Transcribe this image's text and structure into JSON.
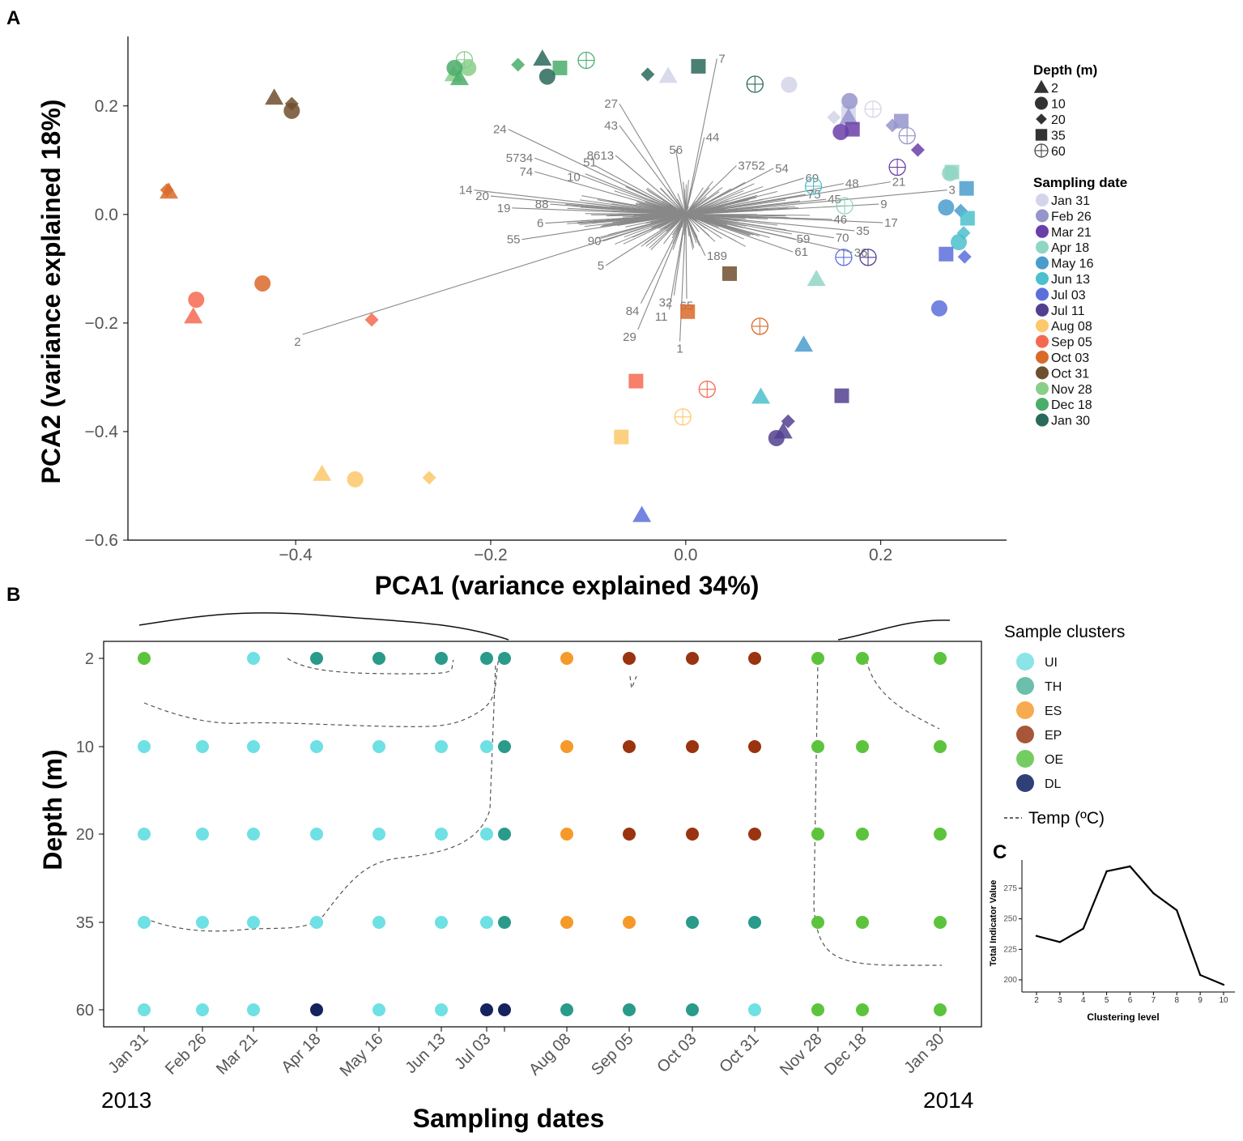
{
  "panels": {
    "a": "A",
    "b": "B",
    "c": "C"
  },
  "chart_data": [
    {
      "type": "scatter",
      "panel": "A",
      "xlabel": "PCA1 (variance explained 34%)",
      "ylabel": "PCA2 (variance explained 18%)",
      "xlim": [
        -0.572,
        0.329
      ],
      "ylim": [
        -0.6,
        0.328
      ],
      "xticks": [
        -0.4,
        -0.2,
        0.0,
        0.2
      ],
      "xtick_labels": [
        "−0.4",
        "−0.2",
        "0.0",
        "0.2"
      ],
      "yticks": [
        0.2,
        0.0,
        -0.2,
        -0.4,
        -0.6
      ],
      "ytick_labels": [
        "0.2",
        "0.0",
        "−0.2",
        "−0.4",
        "−0.6"
      ],
      "legend_depth_title": "Depth (m)",
      "depths": [
        {
          "label": "2",
          "shape": "triangle"
        },
        {
          "label": "10",
          "shape": "circle"
        },
        {
          "label": "20",
          "shape": "diamond"
        },
        {
          "label": "35",
          "shape": "square"
        },
        {
          "label": "60",
          "shape": "crossed-circle"
        }
      ],
      "legend_date_title": "Sampling date",
      "dates": [
        {
          "label": "Jan 31",
          "color": "#d4d4ea"
        },
        {
          "label": "Feb 26",
          "color": "#9595cc"
        },
        {
          "label": "Mar 21",
          "color": "#6a3fa8"
        },
        {
          "label": "Apr 18",
          "color": "#8fd6c4"
        },
        {
          "label": "May 16",
          "color": "#4a9ccc"
        },
        {
          "label": "Jun 13",
          "color": "#4cc0cc"
        },
        {
          "label": "Jul 03",
          "color": "#5b6fdc"
        },
        {
          "label": "Jul 11",
          "color": "#523f8f"
        },
        {
          "label": "Aug 08",
          "color": "#fcc86a"
        },
        {
          "label": "Sep 05",
          "color": "#f46a50"
        },
        {
          "label": "Oct 03",
          "color": "#d96a2a"
        },
        {
          "label": "Oct 31",
          "color": "#6e4f2e"
        },
        {
          "label": "Nov 28",
          "color": "#88cf8a"
        },
        {
          "label": "Dec 18",
          "color": "#4aad6a"
        },
        {
          "label": "Jan 30",
          "color": "#2a6a5a"
        }
      ],
      "points": [
        {
          "date": "Oct 03",
          "depth": "2",
          "x": -0.53,
          "y": 0.042
        },
        {
          "date": "Oct 03",
          "depth": "20",
          "x": -0.532,
          "y": 0.045
        },
        {
          "date": "Oct 03",
          "depth": "10",
          "x": -0.434,
          "y": -0.127
        },
        {
          "date": "Oct 03",
          "depth": "35",
          "x": 0.002,
          "y": -0.179
        },
        {
          "date": "Oct 03",
          "depth": "60",
          "x": 0.076,
          "y": -0.206
        },
        {
          "date": "Sep 05",
          "depth": "10",
          "x": -0.502,
          "y": -0.157
        },
        {
          "date": "Sep 05",
          "depth": "2",
          "x": -0.505,
          "y": -0.188
        },
        {
          "date": "Sep 05",
          "depth": "20",
          "x": -0.322,
          "y": -0.194
        },
        {
          "date": "Sep 05",
          "depth": "35",
          "x": -0.051,
          "y": -0.307
        },
        {
          "date": "Sep 05",
          "depth": "60",
          "x": 0.022,
          "y": -0.322
        },
        {
          "date": "Oct 31",
          "depth": "2",
          "x": -0.422,
          "y": 0.215
        },
        {
          "date": "Oct 31",
          "depth": "20",
          "x": -0.404,
          "y": 0.204
        },
        {
          "date": "Oct 31",
          "depth": "10",
          "x": -0.404,
          "y": 0.191
        },
        {
          "date": "Oct 31",
          "depth": "35",
          "x": 0.045,
          "y": -0.109
        },
        {
          "date": "Aug 08",
          "depth": "2",
          "x": -0.373,
          "y": -0.478
        },
        {
          "date": "Aug 08",
          "depth": "10",
          "x": -0.339,
          "y": -0.488
        },
        {
          "date": "Aug 08",
          "depth": "20",
          "x": -0.263,
          "y": -0.485
        },
        {
          "date": "Aug 08",
          "depth": "35",
          "x": -0.066,
          "y": -0.41
        },
        {
          "date": "Aug 08",
          "depth": "60",
          "x": -0.003,
          "y": -0.373
        },
        {
          "date": "Nov 28",
          "depth": "10",
          "x": -0.223,
          "y": 0.27
        },
        {
          "date": "Nov 28",
          "depth": "2",
          "x": -0.238,
          "y": 0.258
        },
        {
          "date": "Nov 28",
          "depth": "60",
          "x": -0.227,
          "y": 0.285
        },
        {
          "date": "Dec 18",
          "depth": "10",
          "x": -0.237,
          "y": 0.27
        },
        {
          "date": "Dec 18",
          "depth": "2",
          "x": -0.232,
          "y": 0.251
        },
        {
          "date": "Dec 18",
          "depth": "20",
          "x": -0.172,
          "y": 0.276
        },
        {
          "date": "Dec 18",
          "depth": "35",
          "x": -0.129,
          "y": 0.27
        },
        {
          "date": "Dec 18",
          "depth": "60",
          "x": -0.102,
          "y": 0.284
        },
        {
          "date": "Jan 30",
          "depth": "2",
          "x": -0.147,
          "y": 0.287
        },
        {
          "date": "Jan 30",
          "depth": "10",
          "x": -0.142,
          "y": 0.254
        },
        {
          "date": "Jan 30",
          "depth": "20",
          "x": -0.039,
          "y": 0.258
        },
        {
          "date": "Jan 30",
          "depth": "35",
          "x": 0.013,
          "y": 0.273
        },
        {
          "date": "Jan 30",
          "depth": "60",
          "x": 0.071,
          "y": 0.24
        },
        {
          "date": "Jan 31",
          "depth": "2",
          "x": -0.018,
          "y": 0.255
        },
        {
          "date": "Jan 31",
          "depth": "10",
          "x": 0.106,
          "y": 0.239
        },
        {
          "date": "Jan 31",
          "depth": "20",
          "x": 0.152,
          "y": 0.179
        },
        {
          "date": "Jan 31",
          "depth": "35",
          "x": 0.167,
          "y": 0.187
        },
        {
          "date": "Jan 31",
          "depth": "60",
          "x": 0.192,
          "y": 0.194
        },
        {
          "date": "Feb 26",
          "depth": "10",
          "x": 0.168,
          "y": 0.209
        },
        {
          "date": "Feb 26",
          "depth": "2",
          "x": 0.167,
          "y": 0.179
        },
        {
          "date": "Feb 26",
          "depth": "20",
          "x": 0.212,
          "y": 0.164
        },
        {
          "date": "Feb 26",
          "depth": "35",
          "x": 0.221,
          "y": 0.172
        },
        {
          "date": "Feb 26",
          "depth": "60",
          "x": 0.227,
          "y": 0.145
        },
        {
          "date": "Mar 21",
          "depth": "10",
          "x": 0.159,
          "y": 0.152
        },
        {
          "date": "Mar 21",
          "depth": "35",
          "x": 0.171,
          "y": 0.157
        },
        {
          "date": "Mar 21",
          "depth": "20",
          "x": 0.238,
          "y": 0.119
        },
        {
          "date": "Mar 21",
          "depth": "60",
          "x": 0.217,
          "y": 0.087
        },
        {
          "date": "Apr 18",
          "depth": "2",
          "x": 0.134,
          "y": -0.119
        },
        {
          "date": "Apr 18",
          "depth": "10",
          "x": 0.271,
          "y": 0.076
        },
        {
          "date": "Apr 18",
          "depth": "35",
          "x": 0.273,
          "y": 0.078
        },
        {
          "date": "Apr 18",
          "depth": "60",
          "x": 0.163,
          "y": 0.016
        },
        {
          "date": "May 16",
          "depth": "10",
          "x": 0.267,
          "y": 0.013
        },
        {
          "date": "May 16",
          "depth": "35",
          "x": 0.288,
          "y": 0.048
        },
        {
          "date": "May 16",
          "depth": "20",
          "x": 0.282,
          "y": 0.007
        },
        {
          "date": "May 16",
          "depth": "2",
          "x": 0.121,
          "y": -0.24
        },
        {
          "date": "Jun 13",
          "depth": "35",
          "x": 0.289,
          "y": -0.007
        },
        {
          "date": "Jun 13",
          "depth": "20",
          "x": 0.285,
          "y": -0.034
        },
        {
          "date": "Jun 13",
          "depth": "10",
          "x": 0.28,
          "y": -0.051
        },
        {
          "date": "Jun 13",
          "depth": "2",
          "x": 0.077,
          "y": -0.336
        },
        {
          "date": "Jun 13",
          "depth": "60",
          "x": 0.131,
          "y": 0.052
        },
        {
          "date": "Jul 03",
          "depth": "35",
          "x": 0.267,
          "y": -0.073
        },
        {
          "date": "Jul 03",
          "depth": "20",
          "x": 0.286,
          "y": -0.078
        },
        {
          "date": "Jul 03",
          "depth": "10",
          "x": 0.26,
          "y": -0.173
        },
        {
          "date": "Jul 03",
          "depth": "2",
          "x": -0.045,
          "y": -0.554
        },
        {
          "date": "Jul 03",
          "depth": "60",
          "x": 0.162,
          "y": -0.079
        },
        {
          "date": "Jul 11",
          "depth": "35",
          "x": 0.16,
          "y": -0.334
        },
        {
          "date": "Jul 11",
          "depth": "20",
          "x": 0.105,
          "y": -0.381
        },
        {
          "date": "Jul 11",
          "depth": "2",
          "x": 0.1,
          "y": -0.4
        },
        {
          "date": "Jul 11",
          "depth": "10",
          "x": 0.093,
          "y": -0.412
        },
        {
          "date": "Jul 11",
          "depth": "60",
          "x": 0.187,
          "y": -0.079
        }
      ],
      "loadings": [
        {
          "label": "2",
          "x": -0.393,
          "y": -0.221
        },
        {
          "label": "7",
          "x": 0.032,
          "y": 0.287
        },
        {
          "label": "27",
          "x": -0.068,
          "y": 0.204
        },
        {
          "label": "43",
          "x": -0.068,
          "y": 0.164
        },
        {
          "label": "44",
          "x": 0.019,
          "y": 0.142
        },
        {
          "label": "24",
          "x": -0.182,
          "y": 0.157
        },
        {
          "label": "56",
          "x": -0.01,
          "y": 0.119
        },
        {
          "label": "5734",
          "x": -0.155,
          "y": 0.104
        },
        {
          "label": "74",
          "x": -0.155,
          "y": 0.079
        },
        {
          "label": "10",
          "x": -0.103,
          "y": 0.075
        },
        {
          "label": "51",
          "x": -0.093,
          "y": 0.09
        },
        {
          "label": "8613",
          "x": -0.072,
          "y": 0.109
        },
        {
          "label": "14",
          "x": -0.217,
          "y": 0.045
        },
        {
          "label": "20",
          "x": -0.2,
          "y": 0.034
        },
        {
          "label": "19",
          "x": -0.178,
          "y": 0.012
        },
        {
          "label": "88",
          "x": -0.139,
          "y": 0.019
        },
        {
          "label": "6",
          "x": -0.144,
          "y": -0.016
        },
        {
          "label": "55",
          "x": -0.168,
          "y": -0.046
        },
        {
          "label": "90",
          "x": -0.085,
          "y": -0.049
        },
        {
          "label": "5",
          "x": -0.082,
          "y": -0.094
        },
        {
          "label": "84",
          "x": -0.046,
          "y": -0.164
        },
        {
          "label": "29",
          "x": -0.049,
          "y": -0.212
        },
        {
          "label": "1",
          "x": -0.006,
          "y": -0.234
        },
        {
          "label": "11",
          "x": -0.017,
          "y": -0.175
        },
        {
          "label": "32",
          "x": -0.012,
          "y": -0.149
        },
        {
          "label": "65",
          "x": 0.001,
          "y": -0.155
        },
        {
          "label": "189",
          "x": 0.02,
          "y": -0.076
        },
        {
          "label": "3752",
          "x": 0.052,
          "y": 0.09
        },
        {
          "label": "54",
          "x": 0.09,
          "y": 0.085
        },
        {
          "label": "69",
          "x": 0.121,
          "y": 0.067
        },
        {
          "label": "48",
          "x": 0.162,
          "y": 0.057
        },
        {
          "label": "21",
          "x": 0.21,
          "y": 0.06
        },
        {
          "label": "3",
          "x": 0.268,
          "y": 0.045
        },
        {
          "label": "9",
          "x": 0.198,
          "y": 0.019
        },
        {
          "label": "17",
          "x": 0.202,
          "y": -0.015
        },
        {
          "label": "35",
          "x": 0.173,
          "y": -0.03
        },
        {
          "label": "46",
          "x": 0.15,
          "y": -0.009
        },
        {
          "label": "70",
          "x": 0.152,
          "y": -0.043
        },
        {
          "label": "36",
          "x": 0.171,
          "y": -0.07
        },
        {
          "label": "59",
          "x": 0.112,
          "y": -0.045
        },
        {
          "label": "61",
          "x": 0.11,
          "y": -0.069
        },
        {
          "label": "45",
          "x": 0.144,
          "y": 0.028
        },
        {
          "label": "75",
          "x": 0.123,
          "y": 0.037
        }
      ]
    },
    {
      "type": "heatmap",
      "panel": "B",
      "xlabel": "Sampling dates",
      "ylabel": "Depth (m)",
      "year_start": "2013",
      "year_end": "2014",
      "depths": [
        "2",
        "10",
        "20",
        "35",
        "60"
      ],
      "columns": [
        "Jan 31",
        "Feb 26",
        "Mar 21",
        "Apr 18",
        "May 16",
        "Jun 13",
        "Jul 03",
        "Jul 11",
        "Aug 08",
        "Sep 05",
        "Oct 03",
        "Oct 31",
        "Nov 28",
        "Dec 18",
        "Jan 30"
      ],
      "column_labels": [
        "Jan 31",
        "Feb 26",
        "Mar 21",
        "Apr 18",
        "May 16",
        "Jun 13",
        "Jul 03",
        "",
        "Aug 08",
        "Sep 05",
        "Oct 03",
        "Oct 31",
        "Nov 28",
        "Dec 18",
        "Jan 30"
      ],
      "legend_title": "Sample clusters",
      "clusters": [
        {
          "label": "UI",
          "color": "#6fe0e4",
          "legend_color": "#8ae4e8"
        },
        {
          "label": "TH",
          "color": "#2a9a8a",
          "legend_color": "#6bbfab"
        },
        {
          "label": "ES",
          "color": "#f59a2a",
          "legend_color": "#f7aa50"
        },
        {
          "label": "EP",
          "color": "#9a3410",
          "legend_color": "#a85638"
        },
        {
          "label": "OE",
          "color": "#5cc43c",
          "legend_color": "#74cd60"
        },
        {
          "label": "DL",
          "color": "#14235e",
          "legend_color": "#2f4078"
        }
      ],
      "temp_legend": "Temp (ºC)",
      "grid": [
        [
          "OE",
          null,
          "UI",
          "TH",
          "TH",
          "TH",
          "TH",
          "TH",
          "ES",
          "EP",
          "EP",
          "EP",
          "OE",
          "OE",
          "OE"
        ],
        [
          "UI",
          "UI",
          "UI",
          "UI",
          "UI",
          "UI",
          "UI",
          "TH",
          "ES",
          "EP",
          "EP",
          "EP",
          "OE",
          "OE",
          "OE"
        ],
        [
          "UI",
          "UI",
          "UI",
          "UI",
          "UI",
          "UI",
          "UI",
          "TH",
          "ES",
          "EP",
          "EP",
          "EP",
          "OE",
          "OE",
          "OE"
        ],
        [
          "UI",
          "UI",
          "UI",
          "UI",
          "UI",
          "UI",
          "UI",
          "TH",
          "ES",
          "ES",
          "TH",
          "TH",
          "OE",
          "OE",
          "OE"
        ],
        [
          "UI",
          "UI",
          "UI",
          "DL",
          "UI",
          "UI",
          "DL",
          "DL",
          "TH",
          "TH",
          "TH",
          "UI",
          "OE",
          "OE",
          "OE"
        ]
      ]
    },
    {
      "type": "line",
      "panel": "C",
      "xlabel": "Clustering level",
      "ylabel": "Total Indicator Value",
      "x": [
        2,
        3,
        4,
        5,
        6,
        7,
        8,
        9,
        10
      ],
      "y": [
        236,
        231,
        242,
        289,
        293,
        271,
        257,
        204,
        196
      ],
      "xlim": [
        2,
        10
      ],
      "ylim": [
        190,
        300
      ],
      "yticks": [
        200,
        225,
        250,
        275
      ]
    }
  ]
}
